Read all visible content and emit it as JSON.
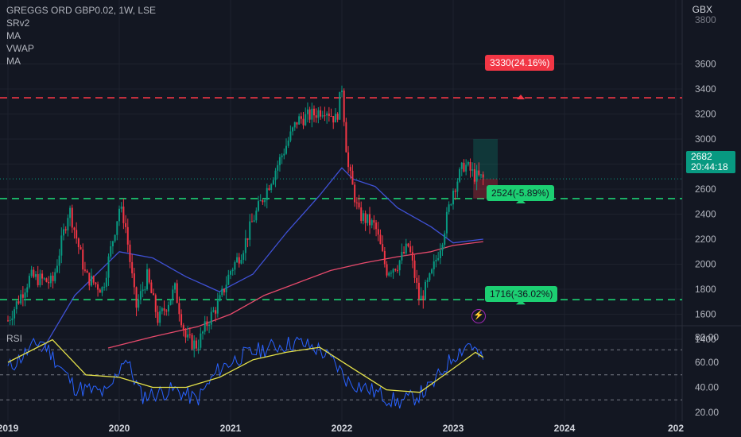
{
  "header": {
    "symbol": "GREGGS ORD GBP0.02, 1W, LSE",
    "indicators": [
      "SRv2",
      "MA",
      "VWAP",
      "MA"
    ],
    "currency": "GBX"
  },
  "last_price": {
    "value": "2682",
    "countdown": "20:44:18"
  },
  "levels": {
    "resistance": "3330(24.16%)",
    "support1": "2524(-5.89%)",
    "support2": "1716(-36.02%)"
  },
  "rsi": {
    "label": "RSI"
  },
  "chart_data": {
    "type": "line",
    "price_axis_ticks": [
      1400,
      1600,
      1800,
      2000,
      2200,
      2400,
      2600,
      2800,
      3000,
      3200,
      3400,
      3600
    ],
    "price_axis_top_partial": "3800",
    "rsi_axis_ticks": [
      "20.00",
      "40.00",
      "60.00",
      "80.00"
    ],
    "rsi_levels": [
      30,
      50,
      70
    ],
    "x_ticks": [
      "2019",
      "2020",
      "2021",
      "2022",
      "2023",
      "2024",
      "202"
    ],
    "horizontal_levels": [
      {
        "value": 3330,
        "color": "#f23645"
      },
      {
        "value": 2524,
        "color": "#1ccf72"
      },
      {
        "value": 1716,
        "color": "#1ccf72"
      }
    ],
    "price_series": {
      "x": [
        2019.0,
        2019.2,
        2019.4,
        2019.55,
        2019.7,
        2019.85,
        2020.0,
        2020.05,
        2020.15,
        2020.25,
        2020.35,
        2020.5,
        2020.6,
        2020.7,
        2020.8,
        2020.9,
        2021.0,
        2021.1,
        2021.2,
        2021.3,
        2021.45,
        2021.6,
        2021.75,
        2021.85,
        2021.95,
        2022.0,
        2022.05,
        2022.15,
        2022.3,
        2022.4,
        2022.5,
        2022.6,
        2022.7,
        2022.8,
        2022.9,
        2023.0,
        2023.1,
        2023.2,
        2023.27
      ],
      "values": [
        1550,
        1900,
        1850,
        2450,
        1900,
        1800,
        2450,
        2350,
        1650,
        1900,
        1550,
        1800,
        1400,
        1350,
        1550,
        1700,
        1950,
        2100,
        2350,
        2550,
        2850,
        3150,
        3200,
        3250,
        3150,
        3420,
        2800,
        2400,
        2300,
        1950,
        2000,
        2150,
        1700,
        1900,
        2200,
        2600,
        2800,
        2700,
        2682
      ]
    },
    "ma_blue": {
      "x": [
        2019.3,
        2019.6,
        2020.0,
        2020.3,
        2020.6,
        2020.9,
        2021.2,
        2021.5,
        2021.8,
        2022.0,
        2022.1,
        2022.3,
        2022.5,
        2022.8,
        2023.0,
        2023.27
      ],
      "values": [
        1300,
        1750,
        2100,
        2050,
        1900,
        1780,
        1920,
        2250,
        2550,
        2770,
        2680,
        2620,
        2450,
        2300,
        2170,
        2200
      ]
    },
    "ma_red": {
      "x": [
        2019.9,
        2020.3,
        2020.7,
        2021.0,
        2021.3,
        2021.6,
        2021.9,
        2022.2,
        2022.5,
        2022.8,
        2023.0,
        2023.27
      ],
      "values": [
        1330,
        1420,
        1500,
        1600,
        1750,
        1850,
        1950,
        2010,
        2060,
        2100,
        2150,
        2180
      ]
    },
    "rsi_series": {
      "x": [
        2019.0,
        2019.3,
        2019.6,
        2019.9,
        2020.05,
        2020.2,
        2020.5,
        2020.7,
        2020.9,
        2021.1,
        2021.35,
        2021.6,
        2021.8,
        2021.95,
        2022.05,
        2022.2,
        2022.5,
        2022.65,
        2022.8,
        2023.0,
        2023.15,
        2023.27
      ],
      "values": [
        55,
        78,
        40,
        35,
        65,
        33,
        38,
        30,
        55,
        65,
        72,
        76,
        70,
        58,
        45,
        40,
        28,
        32,
        40,
        65,
        76,
        60
      ]
    },
    "rsi_ma": {
      "x": [
        2019.0,
        2019.4,
        2019.7,
        2020.0,
        2020.3,
        2020.6,
        2020.9,
        2021.2,
        2021.5,
        2021.8,
        2022.1,
        2022.4,
        2022.7,
        2023.0,
        2023.2,
        2023.27
      ],
      "values": [
        60,
        78,
        50,
        48,
        40,
        40,
        48,
        62,
        68,
        72,
        55,
        38,
        36,
        55,
        68,
        64
      ]
    },
    "trade_box": {
      "entry": 2682,
      "target": 3000,
      "stop": 2524
    }
  }
}
